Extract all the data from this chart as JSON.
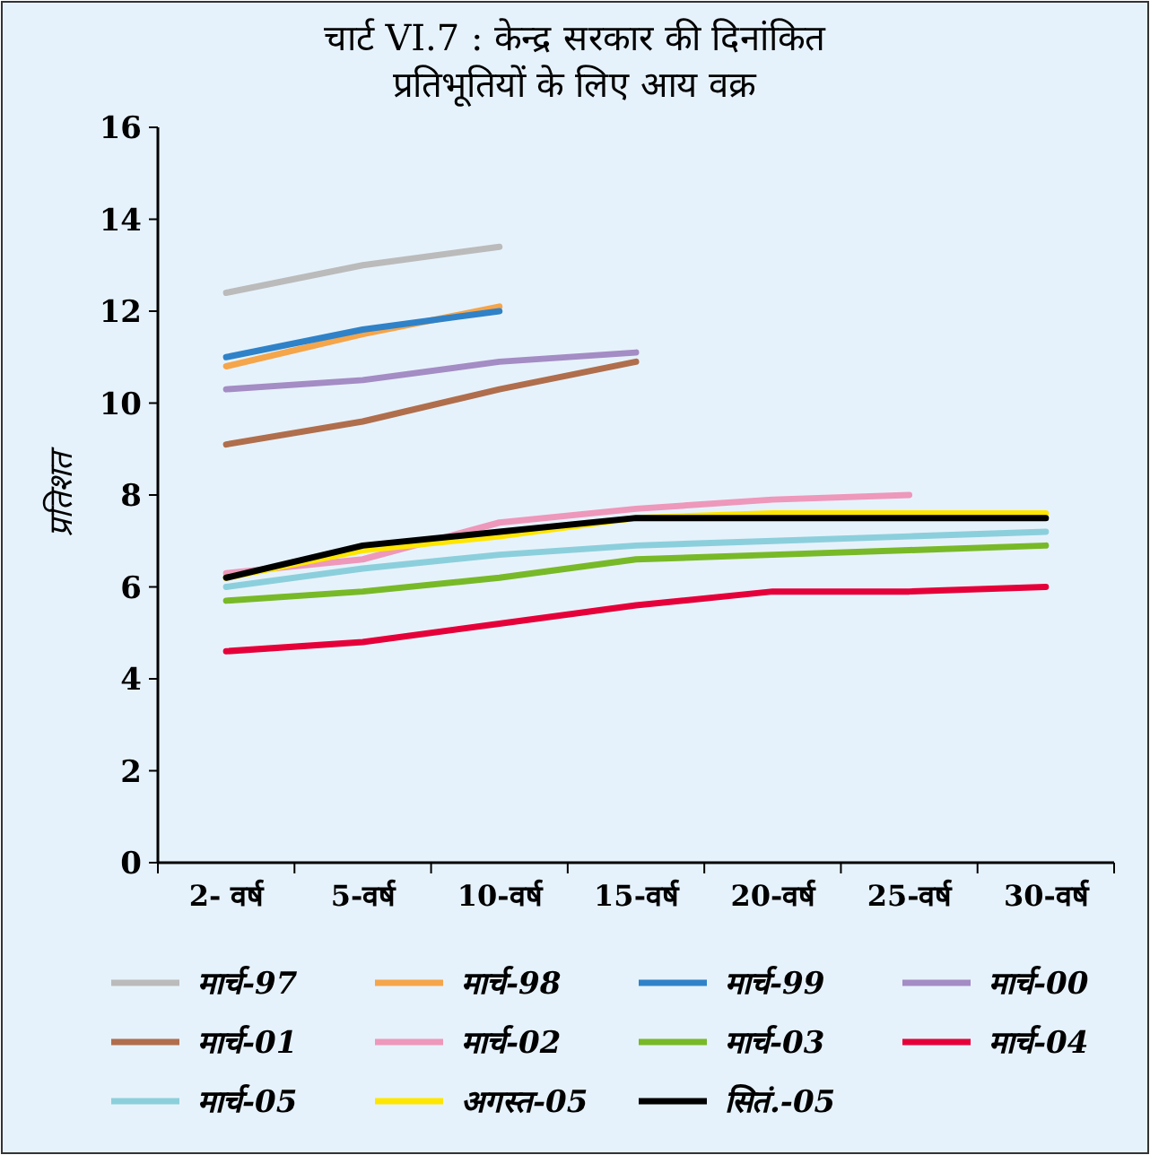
{
  "chart_data": {
    "type": "line",
    "title": "चार्ट VI.7 : केन्द्र सरकार की दिनांकित प्रतिभूतियों के लिए आय वक्र",
    "ylabel": "प्रतिशत",
    "categories": [
      "2- वर्ष",
      "5-वर्ष",
      "10-वर्ष",
      "15-वर्ष",
      "20-वर्ष",
      "25-वर्ष",
      "30-वर्ष"
    ],
    "ylim": [
      0,
      16
    ],
    "yticks": [
      0,
      2,
      4,
      6,
      8,
      10,
      12,
      14,
      16
    ],
    "grid": false,
    "legend": "bottom",
    "marker": "none",
    "line_style": "solid",
    "series": [
      {
        "name": "मार्च-97",
        "color": "#bbbbbb",
        "values": [
          12.4,
          13.0,
          13.4,
          null,
          null,
          null,
          null
        ]
      },
      {
        "name": "मार्च-98",
        "color": "#f5a54a",
        "values": [
          10.8,
          11.5,
          12.1,
          null,
          null,
          null,
          null
        ]
      },
      {
        "name": "मार्च-99",
        "color": "#2f82c8",
        "values": [
          11.0,
          11.6,
          12.0,
          null,
          null,
          null,
          null
        ]
      },
      {
        "name": "मार्च-00",
        "color": "#a48cc4",
        "values": [
          10.3,
          10.5,
          10.9,
          11.1,
          null,
          null,
          null
        ]
      },
      {
        "name": "मार्च-01",
        "color": "#b06e4c",
        "values": [
          9.1,
          9.6,
          10.3,
          10.9,
          null,
          null,
          null
        ]
      },
      {
        "name": "मार्च-02",
        "color": "#ee98bb",
        "values": [
          6.3,
          6.6,
          7.4,
          7.7,
          7.9,
          8.0,
          null
        ]
      },
      {
        "name": "मार्च-03",
        "color": "#78b928",
        "values": [
          5.7,
          5.9,
          6.2,
          6.6,
          6.7,
          6.8,
          6.9
        ]
      },
      {
        "name": "मार्च-04",
        "color": "#e5003a",
        "values": [
          4.6,
          4.8,
          5.2,
          5.6,
          5.9,
          5.9,
          6.0
        ]
      },
      {
        "name": "मार्च-05",
        "color": "#8ccfdc",
        "values": [
          6.0,
          6.4,
          6.7,
          6.9,
          7.0,
          7.1,
          7.2
        ]
      },
      {
        "name": "अगस्त-05",
        "color": "#ffe600",
        "values": [
          6.2,
          6.8,
          7.1,
          7.5,
          7.6,
          7.6,
          7.6
        ]
      },
      {
        "name": "सितं.-05",
        "color": "#000000",
        "values": [
          6.2,
          6.9,
          7.2,
          7.5,
          7.5,
          7.5,
          7.5
        ]
      }
    ]
  }
}
